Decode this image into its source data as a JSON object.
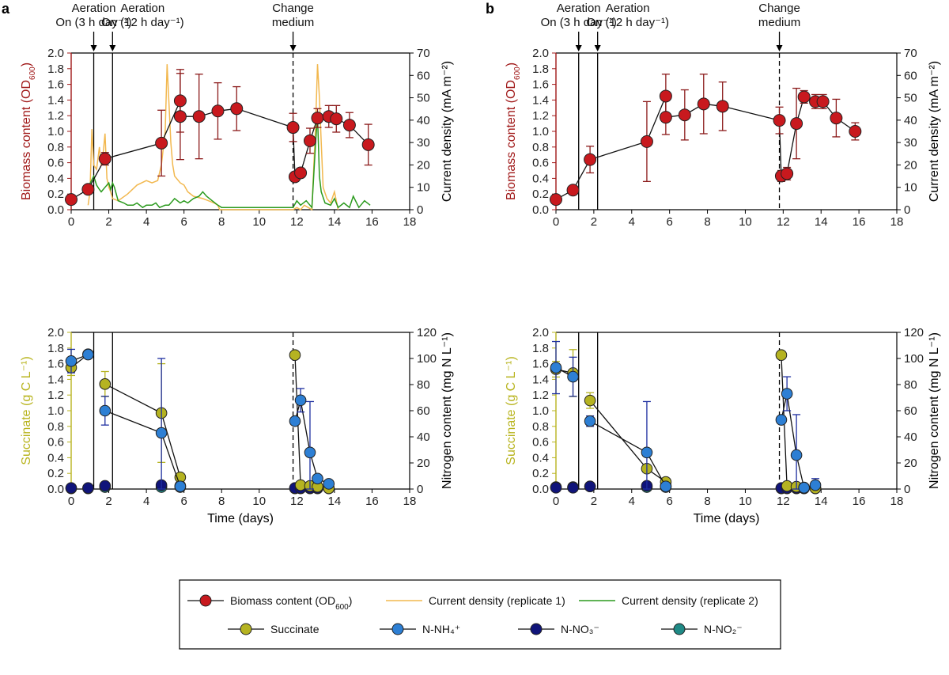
{
  "panel_labels": [
    "a",
    "b"
  ],
  "annotations": {
    "aeration1": [
      "Aeration",
      "On (3 h day⁻¹)"
    ],
    "aeration2": [
      "Aeration",
      "On (12 h day⁻¹)"
    ],
    "change": [
      "Change",
      "medium"
    ]
  },
  "axis_titles": {
    "biomass": "Biomass content (OD600)",
    "current": "Current density (mA m⁻²)",
    "succinate": "Succinate (g C L⁻¹)",
    "nitrogen": "Nitrogen content (mg N L⁻¹)",
    "time": "Time (days)"
  },
  "colors": {
    "biomass": "#c8191e",
    "biomass_err": "#8b1a1a",
    "biomass_axis": "#a01818",
    "succinate": "#b5b321",
    "succinate_axis": "#b8b41e",
    "nh4": "#2d7fd4",
    "nh4_err": "#1e2fa0",
    "no3": "#10147a",
    "no2": "#1f8a86",
    "cd1": "#f2b84f",
    "cd2": "#2b9a1e"
  },
  "legend": {
    "items": [
      {
        "key": "biomass",
        "label": "Biomass content (OD600)",
        "kind": "marker"
      },
      {
        "key": "cd1",
        "label": "Current density (replicate 1)",
        "kind": "line"
      },
      {
        "key": "cd2",
        "label": "Current density (replicate 2)",
        "kind": "line"
      },
      {
        "key": "succinate",
        "label": "Succinate",
        "kind": "marker"
      },
      {
        "key": "nh4",
        "label": "N-NH₄⁺",
        "kind": "marker"
      },
      {
        "key": "no3",
        "label": "N-NO₃⁻",
        "kind": "marker"
      },
      {
        "key": "no2",
        "label": "N-NO₂⁻",
        "kind": "marker"
      }
    ]
  },
  "chart_data": [
    {
      "type": "line",
      "panel": "a",
      "position": "top",
      "xlabel": "",
      "ylabel": "Biomass content (OD600)",
      "y2label": "Current density (mA m⁻²)",
      "xlim": [
        0,
        18
      ],
      "ylim": [
        0,
        2.0
      ],
      "y2lim": [
        0,
        70
      ],
      "xticks": [
        0,
        2,
        4,
        6,
        8,
        10,
        12,
        14,
        16,
        18
      ],
      "yticks": [
        0,
        0.2,
        0.4,
        0.6,
        0.8,
        1.0,
        1.2,
        1.4,
        1.6,
        1.8,
        2.0
      ],
      "y2ticks": [
        0,
        10,
        20,
        30,
        40,
        50,
        60,
        70
      ],
      "event_lines": [
        {
          "x": 1.2,
          "style": "solid"
        },
        {
          "x": 2.2,
          "style": "solid"
        },
        {
          "x": 11.8,
          "style": "dashed"
        }
      ],
      "series": [
        {
          "key": "cd1",
          "axis": "right",
          "style": "line",
          "x": [
            0.9,
            1.0,
            1.1,
            1.2,
            1.35,
            1.5,
            1.6,
            1.7,
            1.8,
            1.9,
            2.0,
            2.1,
            2.2,
            2.5,
            3.0,
            3.5,
            4.0,
            4.3,
            4.6,
            4.8,
            5.0,
            5.1,
            5.2,
            5.3,
            5.4,
            5.5,
            5.6,
            5.7,
            5.8,
            6.0,
            6.2,
            6.5,
            7.0,
            7.3,
            7.6,
            7.8,
            7.9,
            11.8,
            12.0,
            12.2,
            12.4,
            12.6,
            12.8,
            13.0,
            13.1,
            13.2,
            13.3,
            13.4,
            13.6,
            13.8,
            14.0,
            14.2
          ],
          "y": [
            2,
            8,
            36,
            20,
            18,
            28,
            20,
            25,
            34,
            14,
            10,
            8,
            5,
            4,
            7,
            11,
            13,
            12,
            13,
            20,
            35,
            65,
            48,
            30,
            20,
            15,
            14,
            13,
            12,
            11,
            8,
            6,
            5,
            4,
            3,
            2,
            0,
            0,
            1,
            0,
            2,
            1,
            0,
            38,
            65,
            50,
            30,
            10,
            5,
            3,
            8,
            0
          ]
        },
        {
          "key": "cd2",
          "axis": "right",
          "style": "line",
          "x": [
            0.9,
            1.2,
            1.35,
            1.5,
            1.6,
            1.8,
            2.0,
            2.1,
            2.2,
            2.3,
            2.5,
            2.8,
            3.0,
            3.3,
            3.5,
            3.8,
            4.0,
            4.3,
            4.5,
            4.7,
            5.0,
            5.2,
            5.5,
            5.8,
            6.0,
            6.2,
            6.5,
            6.8,
            7.0,
            7.2,
            7.5,
            7.8,
            8.0,
            9.0,
            10.0,
            11.0,
            11.8,
            12.0,
            12.2,
            12.5,
            12.8,
            13.0,
            13.1,
            13.2,
            13.3,
            13.5,
            13.8,
            14.0,
            14.2,
            14.5,
            14.8,
            15.0,
            15.3,
            15.6,
            15.9
          ],
          "y": [
            10,
            15,
            11,
            9,
            8,
            10,
            12,
            9,
            12,
            10,
            4,
            3,
            2,
            2,
            3,
            1,
            2,
            2,
            3,
            1,
            2,
            2,
            5,
            3,
            4,
            3,
            5,
            6,
            8,
            6,
            4,
            2,
            1,
            1,
            1,
            1,
            1,
            4,
            2,
            4,
            1,
            30,
            42,
            15,
            8,
            3,
            2,
            5,
            1,
            3,
            1,
            6,
            1,
            4,
            2
          ]
        },
        {
          "key": "biomass",
          "axis": "left",
          "style": "marker+line",
          "x": [
            0,
            0.9,
            1.8,
            4.8,
            5.8,
            5.8,
            6.8,
            7.8,
            8.8,
            11.8,
            11.9,
            12.2,
            12.7,
            13.1,
            13.7,
            14.1,
            14.8,
            15.8
          ],
          "y": [
            0.13,
            0.26,
            0.65,
            0.85,
            1.39,
            1.19,
            1.19,
            1.26,
            1.29,
            1.05,
            0.42,
            0.47,
            0.88,
            1.17,
            1.19,
            1.16,
            1.08,
            0.83
          ],
          "err": [
            0,
            0,
            0.08,
            0.42,
            0.4,
            0.55,
            0.54,
            0.36,
            0.28,
            0.18,
            0.06,
            0.06,
            0.16,
            0.12,
            0.14,
            0.17,
            0.16,
            0.26
          ]
        }
      ]
    },
    {
      "type": "line",
      "panel": "b",
      "position": "top",
      "xlabel": "",
      "ylabel": "Biomass content (OD600)",
      "y2label": "Current density (mA m⁻²)",
      "xlim": [
        0,
        18
      ],
      "ylim": [
        0,
        2.0
      ],
      "y2lim": [
        0,
        70
      ],
      "xticks": [
        0,
        2,
        4,
        6,
        8,
        10,
        12,
        14,
        16,
        18
      ],
      "yticks": [
        0,
        0.2,
        0.4,
        0.6,
        0.8,
        1.0,
        1.2,
        1.4,
        1.6,
        1.8,
        2.0
      ],
      "y2ticks": [
        0,
        10,
        20,
        30,
        40,
        50,
        60,
        70
      ],
      "event_lines": [
        {
          "x": 1.2,
          "style": "solid"
        },
        {
          "x": 2.2,
          "style": "solid"
        },
        {
          "x": 11.8,
          "style": "dashed"
        }
      ],
      "series": [
        {
          "key": "biomass",
          "axis": "left",
          "style": "marker+line",
          "x": [
            0,
            0.9,
            1.8,
            4.8,
            5.8,
            5.8,
            6.8,
            7.8,
            8.8,
            11.8,
            11.9,
            12.2,
            12.7,
            13.1,
            13.7,
            14.1,
            14.8,
            15.8
          ],
          "y": [
            0.13,
            0.25,
            0.64,
            0.87,
            1.45,
            1.18,
            1.21,
            1.35,
            1.32,
            1.14,
            0.43,
            0.46,
            1.1,
            1.44,
            1.38,
            1.38,
            1.17,
            1.0
          ],
          "err": [
            0,
            0,
            0.17,
            0.51,
            0.28,
            0.22,
            0.32,
            0.38,
            0.31,
            0.17,
            0.07,
            0.08,
            0.45,
            0.08,
            0.09,
            0.09,
            0.24,
            0.11
          ]
        }
      ]
    },
    {
      "type": "line",
      "panel": "a",
      "position": "bottom",
      "xlabel": "Time (days)",
      "ylabel": "Succinate (g C L⁻¹)",
      "y2label": "Nitrogen content (mg N L⁻¹)",
      "xlim": [
        0,
        18
      ],
      "ylim": [
        0,
        2.0
      ],
      "y2lim": [
        0,
        120
      ],
      "xticks": [
        0,
        2,
        4,
        6,
        8,
        10,
        12,
        14,
        16,
        18
      ],
      "yticks": [
        0,
        0.2,
        0.4,
        0.6,
        0.8,
        1.0,
        1.2,
        1.4,
        1.6,
        1.8,
        2.0
      ],
      "y2ticks": [
        0,
        20,
        40,
        60,
        80,
        100,
        120
      ],
      "event_lines": [
        {
          "x": 1.2,
          "style": "solid"
        },
        {
          "x": 2.2,
          "style": "solid"
        },
        {
          "x": 11.8,
          "style": "dashed"
        }
      ],
      "series": [
        {
          "key": "no2",
          "axis": "right",
          "style": "marker",
          "x": [
            0,
            0.9,
            1.8,
            4.8,
            5.8,
            11.9,
            12.2,
            12.7,
            13.1,
            13.7
          ],
          "y": [
            0.5,
            0.5,
            1.5,
            1.5,
            1.5,
            0.5,
            0.5,
            0.5,
            0.5,
            0.5
          ],
          "err": []
        },
        {
          "key": "no3",
          "axis": "right",
          "style": "marker",
          "x": [
            0,
            0.9,
            1.8,
            4.8,
            5.8,
            11.9,
            12.2,
            12.7,
            13.1,
            13.7
          ],
          "y": [
            0.8,
            0.8,
            2.5,
            3,
            2.5,
            0.8,
            0.8,
            0.8,
            0.8,
            0.8
          ],
          "err": []
        },
        {
          "key": "succinate",
          "axis": "left",
          "style": "marker+line",
          "segments": [
            [
              0,
              1
            ],
            [
              2,
              3,
              4
            ],
            [
              5,
              6,
              7,
              8,
              9
            ]
          ],
          "x": [
            0,
            0.9,
            1.8,
            4.8,
            5.8,
            11.9,
            12.2,
            12.7,
            13.1,
            13.7
          ],
          "y": [
            1.55,
            1.72,
            1.34,
            0.97,
            0.15,
            1.71,
            0.05,
            0.04,
            0.03,
            0.01
          ],
          "err": [
            0.1,
            0,
            0.16,
            0.63,
            0,
            0,
            0,
            0,
            0,
            0
          ]
        },
        {
          "key": "nh4",
          "axis": "right",
          "style": "marker+line",
          "segments": [
            [
              0,
              1
            ],
            [
              2,
              3,
              4
            ],
            [
              5,
              6,
              7,
              8,
              9
            ]
          ],
          "x": [
            0,
            0.9,
            1.8,
            4.8,
            5.8,
            11.9,
            12.2,
            12.7,
            13.1,
            13.7
          ],
          "y": [
            98,
            103,
            60,
            43,
            2,
            52,
            68,
            28,
            8,
            4
          ],
          "err": [
            9,
            0,
            11,
            57,
            0,
            0,
            9,
            39,
            0,
            0
          ]
        }
      ]
    },
    {
      "type": "line",
      "panel": "b",
      "position": "bottom",
      "xlabel": "Time (days)",
      "ylabel": "Succinate (g C L⁻¹)",
      "y2label": "Nitrogen content (mg N L⁻¹)",
      "xlim": [
        0,
        18
      ],
      "ylim": [
        0,
        2.0
      ],
      "y2lim": [
        0,
        120
      ],
      "xticks": [
        0,
        2,
        4,
        6,
        8,
        10,
        12,
        14,
        16,
        18
      ],
      "yticks": [
        0,
        0.2,
        0.4,
        0.6,
        0.8,
        1.0,
        1.2,
        1.4,
        1.6,
        1.8,
        2.0
      ],
      "y2ticks": [
        0,
        20,
        40,
        60,
        80,
        100,
        120
      ],
      "event_lines": [
        {
          "x": 1.2,
          "style": "solid"
        },
        {
          "x": 2.2,
          "style": "solid"
        },
        {
          "x": 11.8,
          "style": "dashed"
        }
      ],
      "series": [
        {
          "key": "no2",
          "axis": "right",
          "style": "marker",
          "x": [
            0,
            0.9,
            1.8,
            4.8,
            5.8,
            11.9,
            12.2,
            12.7,
            13.1,
            13.7
          ],
          "y": [
            1.5,
            1.5,
            2,
            1.5,
            1.5,
            0.5,
            0.5,
            0.5,
            0.5,
            0.5
          ],
          "err": []
        },
        {
          "key": "no3",
          "axis": "right",
          "style": "marker",
          "x": [
            0,
            0.9,
            1.8,
            4.8,
            5.8,
            11.9,
            12.2,
            12.7,
            13.1,
            13.7
          ],
          "y": [
            1,
            1,
            2,
            2.5,
            2.5,
            0.8,
            0.8,
            0.8,
            0.8,
            0.8
          ],
          "err": []
        },
        {
          "key": "succinate",
          "axis": "left",
          "style": "marker+line",
          "segments": [
            [
              0,
              1
            ],
            [
              2,
              3,
              4
            ],
            [
              5,
              6,
              7,
              8,
              9
            ]
          ],
          "x": [
            0,
            0.9,
            1.8,
            4.8,
            5.8,
            11.9,
            12.2,
            12.7,
            13.1,
            13.7
          ],
          "y": [
            1.53,
            1.48,
            1.13,
            0.26,
            0.09,
            1.71,
            0.04,
            0.03,
            0.02,
            0.01
          ],
          "err": [
            0.1,
            0.3,
            0.1,
            0,
            0,
            0,
            0,
            0,
            0,
            0
          ]
        },
        {
          "key": "nh4",
          "axis": "right",
          "style": "marker+line",
          "segments": [
            [
              0,
              1
            ],
            [
              2,
              3,
              4
            ],
            [
              5,
              6,
              7,
              8,
              9
            ]
          ],
          "x": [
            0,
            0.9,
            1.8,
            4.8,
            5.8,
            11.9,
            12.2,
            12.7,
            13.1,
            13.7
          ],
          "y": [
            93,
            86,
            52,
            28,
            2,
            53,
            73,
            26,
            1,
            3
          ],
          "err": [
            20,
            15,
            4,
            39,
            0,
            0,
            13,
            31,
            0,
            5
          ]
        }
      ]
    }
  ]
}
